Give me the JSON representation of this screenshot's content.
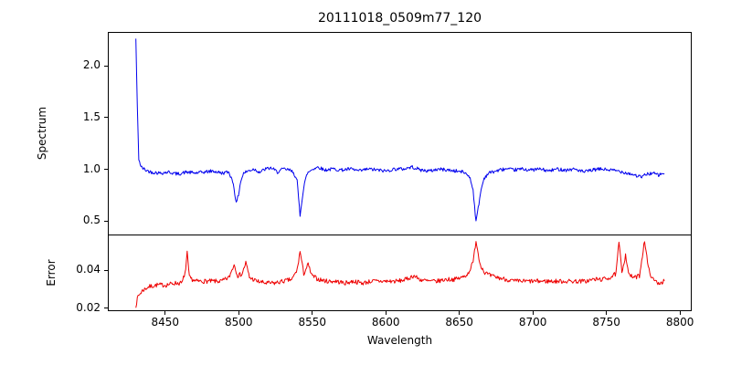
{
  "chart_data": {
    "type": "line",
    "title": "20111018_0509m77_120",
    "xlabel": "Wavelength",
    "x_range": [
      8411,
      8808
    ],
    "x_ticks": [
      8450,
      8500,
      8550,
      8600,
      8650,
      8700,
      8750,
      8800
    ],
    "sample_step": 0.5,
    "grid": false,
    "legend": "none",
    "subplots": [
      {
        "name": "spectrum",
        "ylabel": "Spectrum",
        "y_ticks": [
          0.5,
          1.0,
          1.5,
          2.0
        ],
        "y_tick_labels": [
          "0.5",
          "1.0",
          "1.5",
          "2.0"
        ],
        "y_range": [
          0.36,
          2.33
        ],
        "line_color": "#0000ee",
        "noise_amplitude": 0.017,
        "seed": 42,
        "anchors": [
          [
            8429.5,
            2.27
          ],
          [
            8430.5,
            1.6
          ],
          [
            8431.5,
            1.1
          ],
          [
            8433,
            1.02
          ],
          [
            8436,
            0.99
          ],
          [
            8440,
            0.97
          ],
          [
            8446,
            0.96
          ],
          [
            8452,
            0.97
          ],
          [
            8458,
            0.95
          ],
          [
            8464,
            0.97
          ],
          [
            8470,
            0.96
          ],
          [
            8476,
            0.97
          ],
          [
            8482,
            0.98
          ],
          [
            8488,
            0.96
          ],
          [
            8493,
            0.97
          ],
          [
            8496,
            0.86
          ],
          [
            8498,
            0.66
          ],
          [
            8499.5,
            0.75
          ],
          [
            8501,
            0.88
          ],
          [
            8503,
            0.96
          ],
          [
            8506,
            0.98
          ],
          [
            8510,
            1.0
          ],
          [
            8514,
            0.97
          ],
          [
            8518,
            1.0
          ],
          [
            8522,
            1.01
          ],
          [
            8526,
            0.97
          ],
          [
            8530,
            1.0
          ],
          [
            8534,
            0.99
          ],
          [
            8537,
            0.97
          ],
          [
            8539.5,
            0.88
          ],
          [
            8541.5,
            0.55
          ],
          [
            8543,
            0.72
          ],
          [
            8544.5,
            0.86
          ],
          [
            8546.5,
            0.96
          ],
          [
            8550,
            1.0
          ],
          [
            8554,
            1.02
          ],
          [
            8558,
            0.99
          ],
          [
            8564,
            1.0
          ],
          [
            8570,
            0.99
          ],
          [
            8576,
            1.0
          ],
          [
            8582,
            0.98
          ],
          [
            8588,
            1.0
          ],
          [
            8594,
            0.99
          ],
          [
            8600,
            0.98
          ],
          [
            8606,
            1.0
          ],
          [
            8612,
            1.0
          ],
          [
            8618,
            1.02
          ],
          [
            8624,
            0.99
          ],
          [
            8630,
            0.98
          ],
          [
            8636,
            1.0
          ],
          [
            8642,
            0.99
          ],
          [
            8648,
            0.98
          ],
          [
            8653,
            0.97
          ],
          [
            8657,
            0.93
          ],
          [
            8659.5,
            0.8
          ],
          [
            8661.5,
            0.48
          ],
          [
            8663,
            0.62
          ],
          [
            8665,
            0.8
          ],
          [
            8667,
            0.91
          ],
          [
            8670,
            0.96
          ],
          [
            8675,
            0.98
          ],
          [
            8681,
            1.0
          ],
          [
            8687,
            0.99
          ],
          [
            8693,
            1.0
          ],
          [
            8699,
            0.99
          ],
          [
            8705,
            1.0
          ],
          [
            8711,
            0.98
          ],
          [
            8717,
            1.0
          ],
          [
            8723,
            0.99
          ],
          [
            8729,
            1.0
          ],
          [
            8735,
            0.97
          ],
          [
            8741,
            0.99
          ],
          [
            8747,
            1.0
          ],
          [
            8753,
            0.99
          ],
          [
            8759,
            0.98
          ],
          [
            8765,
            0.96
          ],
          [
            8770,
            0.94
          ],
          [
            8774,
            0.92
          ],
          [
            8778,
            0.95
          ],
          [
            8782,
            0.96
          ],
          [
            8786,
            0.94
          ],
          [
            8790,
            0.96
          ]
        ]
      },
      {
        "name": "error",
        "ylabel": "Error",
        "y_ticks": [
          0.02,
          0.04
        ],
        "y_tick_labels": [
          "0.02",
          "0.04"
        ],
        "y_range": [
          0.0185,
          0.0585
        ],
        "line_color": "#ee0000",
        "noise_amplitude": 0.0012,
        "seed": 7,
        "anchors": [
          [
            8429.5,
            0.021
          ],
          [
            8431,
            0.026
          ],
          [
            8434,
            0.029
          ],
          [
            8438,
            0.031
          ],
          [
            8444,
            0.032
          ],
          [
            8450,
            0.032
          ],
          [
            8456,
            0.033
          ],
          [
            8461,
            0.033
          ],
          [
            8463.5,
            0.04
          ],
          [
            8464.5,
            0.049
          ],
          [
            8466,
            0.036
          ],
          [
            8470,
            0.034
          ],
          [
            8476,
            0.034
          ],
          [
            8482,
            0.034
          ],
          [
            8488,
            0.034
          ],
          [
            8493,
            0.036
          ],
          [
            8496.5,
            0.043
          ],
          [
            8499,
            0.037
          ],
          [
            8502,
            0.038
          ],
          [
            8504.5,
            0.044
          ],
          [
            8507,
            0.036
          ],
          [
            8512,
            0.034
          ],
          [
            8518,
            0.033
          ],
          [
            8524,
            0.033
          ],
          [
            8530,
            0.034
          ],
          [
            8536,
            0.035
          ],
          [
            8539.5,
            0.04
          ],
          [
            8541.5,
            0.05
          ],
          [
            8544,
            0.038
          ],
          [
            8547,
            0.043
          ],
          [
            8549.5,
            0.037
          ],
          [
            8554,
            0.035
          ],
          [
            8560,
            0.034
          ],
          [
            8566,
            0.034
          ],
          [
            8572,
            0.033
          ],
          [
            8578,
            0.034
          ],
          [
            8584,
            0.033
          ],
          [
            8590,
            0.034
          ],
          [
            8596,
            0.034
          ],
          [
            8602,
            0.034
          ],
          [
            8608,
            0.034
          ],
          [
            8614,
            0.035
          ],
          [
            8619,
            0.037
          ],
          [
            8623,
            0.035
          ],
          [
            8629,
            0.034
          ],
          [
            8635,
            0.034
          ],
          [
            8641,
            0.035
          ],
          [
            8647,
            0.035
          ],
          [
            8652,
            0.036
          ],
          [
            8656,
            0.038
          ],
          [
            8659.5,
            0.044
          ],
          [
            8661.5,
            0.056
          ],
          [
            8664,
            0.044
          ],
          [
            8667,
            0.039
          ],
          [
            8671,
            0.037
          ],
          [
            8676,
            0.036
          ],
          [
            8682,
            0.035
          ],
          [
            8688,
            0.034
          ],
          [
            8694,
            0.034
          ],
          [
            8700,
            0.034
          ],
          [
            8706,
            0.034
          ],
          [
            8712,
            0.034
          ],
          [
            8718,
            0.034
          ],
          [
            8724,
            0.034
          ],
          [
            8730,
            0.034
          ],
          [
            8736,
            0.034
          ],
          [
            8742,
            0.035
          ],
          [
            8748,
            0.035
          ],
          [
            8753,
            0.036
          ],
          [
            8757,
            0.038
          ],
          [
            8759,
            0.055
          ],
          [
            8761,
            0.039
          ],
          [
            8763.5,
            0.048
          ],
          [
            8766,
            0.037
          ],
          [
            8770,
            0.036
          ],
          [
            8773,
            0.037
          ],
          [
            8776.5,
            0.056
          ],
          [
            8779,
            0.041
          ],
          [
            8782,
            0.035
          ],
          [
            8786,
            0.033
          ],
          [
            8790,
            0.034
          ]
        ]
      }
    ]
  }
}
